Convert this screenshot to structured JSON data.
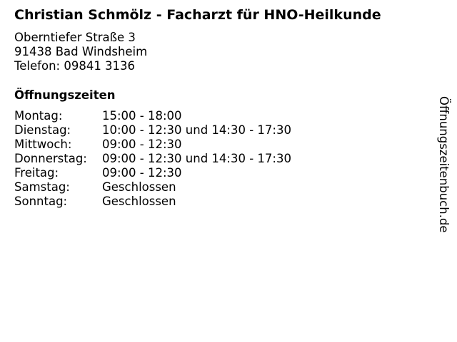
{
  "title": "Christian Schmölz - Facharzt für HNO-Heilkunde",
  "address": {
    "street": "Oberntiefer Straße 3",
    "city": "91438 Bad Windsheim",
    "phone": "Telefon: 09841 3136"
  },
  "hours_heading": "Öffnungszeiten",
  "hours": [
    {
      "day": "Montag:",
      "time": "15:00 - 18:00"
    },
    {
      "day": "Dienstag:",
      "time": "10:00 - 12:30 und 14:30 - 17:30"
    },
    {
      "day": "Mittwoch:",
      "time": "09:00 - 12:30"
    },
    {
      "day": "Donnerstag:",
      "time": "09:00 - 12:30 und 14:30 - 17:30"
    },
    {
      "day": "Freitag:",
      "time": "09:00 - 12:30"
    },
    {
      "day": "Samstag:",
      "time": "Geschlossen"
    },
    {
      "day": "Sonntag:",
      "time": "Geschlossen"
    }
  ],
  "side_label": "Öffnungszeitenbuch.de"
}
